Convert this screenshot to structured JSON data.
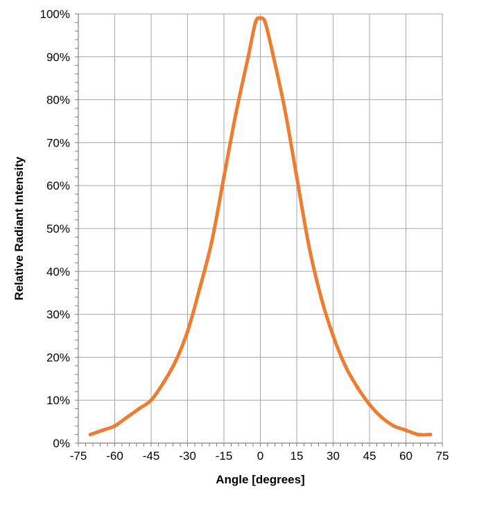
{
  "chart_data": {
    "type": "line",
    "title": "",
    "xlabel": "Angle [degrees]",
    "ylabel": "Relative Radiant Intensity",
    "xlim": [
      -75,
      75
    ],
    "ylim": [
      0,
      100
    ],
    "x_ticks": [
      -75,
      -60,
      -45,
      -30,
      -15,
      0,
      15,
      30,
      45,
      60,
      75
    ],
    "x_minor_step": 3,
    "y_ticks": [
      0,
      10,
      20,
      30,
      40,
      50,
      60,
      70,
      80,
      90,
      100
    ],
    "y_minor_step": 2,
    "x_tick_labels": [
      "-75",
      "-60",
      "-45",
      "-30",
      "-15",
      "0",
      "15",
      "30",
      "45",
      "60",
      "75"
    ],
    "y_tick_labels": [
      "0%",
      "10%",
      "20%",
      "30%",
      "40%",
      "50%",
      "60%",
      "70%",
      "80%",
      "90%",
      "100%"
    ],
    "grid": true,
    "legend": "none",
    "colors": {
      "series": "#ED7D31",
      "grid": "#A6A6A6",
      "axis": "#808080"
    },
    "series": [
      {
        "x": [
          -70,
          -65,
          -60,
          -55,
          -50,
          -45,
          -40,
          -35,
          -30,
          -25,
          -20,
          -15,
          -10,
          -5,
          -2,
          0,
          2,
          5,
          10,
          15,
          20,
          25,
          30,
          35,
          40,
          45,
          50,
          55,
          60,
          65,
          70
        ],
        "values": [
          2,
          3,
          4,
          6,
          8,
          10,
          14,
          19,
          26,
          36,
          47,
          62,
          77,
          90,
          98,
          99,
          98,
          91,
          78,
          62,
          46,
          34,
          25,
          18,
          13,
          9,
          6,
          4,
          3,
          2,
          2
        ]
      }
    ]
  }
}
